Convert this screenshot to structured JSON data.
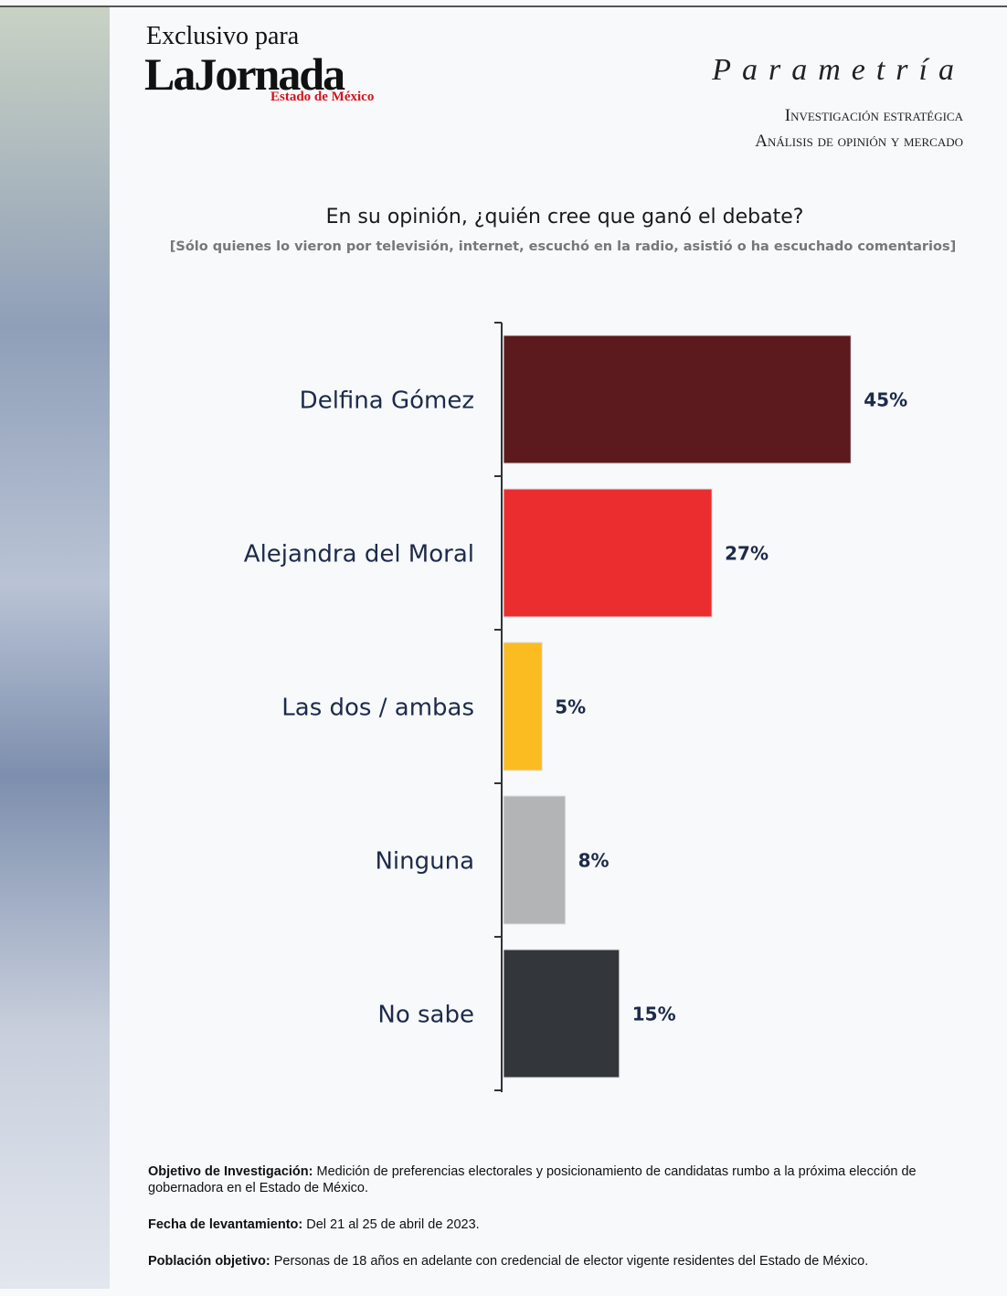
{
  "header": {
    "exclusive": "Exclusivo para",
    "brand": "LaJornada",
    "brand_region": "Estado de México",
    "pollster": "Parametría",
    "tagline_1": "Investigación estratégica",
    "tagline_2": "Análisis de opinión y mercado"
  },
  "chart_data": {
    "type": "hbar",
    "title": "En su opinión, ¿quién cree que ganó el debate?",
    "subtitle": "[Sólo quienes lo vieron por televisión, internet, escuchó en la radio, asistió o ha escuchado comentarios]",
    "categories": [
      "Delfina Gómez",
      "Alejandra del Moral",
      "Las dos / ambas",
      "Ninguna",
      "No sabe"
    ],
    "values": [
      45,
      27,
      5,
      8,
      15
    ],
    "value_labels": [
      "45%",
      "27%",
      "5%",
      "8%",
      "15%"
    ],
    "colors": [
      "#5c1a1e",
      "#ec2d2f",
      "#fbbc22",
      "#b2b4b6",
      "#33363a"
    ]
  },
  "footer": [
    {
      "label": "Objetivo de Investigación:",
      "text": "Medición de preferencias electorales y posicionamiento de candidatas rumbo a la próxima elección de gobernadora en el Estado de México."
    },
    {
      "label": "Fecha de levantamiento:",
      "text": "Del 21 al 25 de abril de 2023."
    },
    {
      "label": "Población objetivo:",
      "text": "Personas de 18 años en adelante con credencial de elector vigente residentes del Estado de México."
    }
  ]
}
